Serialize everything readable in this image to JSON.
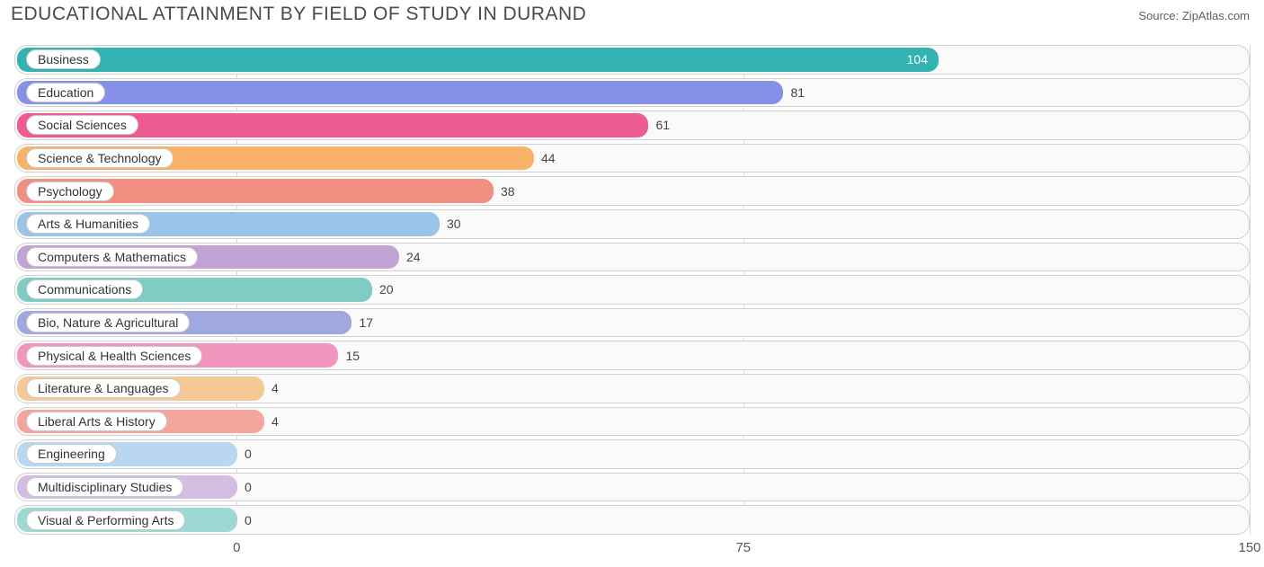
{
  "title": "EDUCATIONAL ATTAINMENT BY FIELD OF STUDY IN DURAND",
  "source_label": "Source: ZipAtlas.com",
  "chart": {
    "type": "bar",
    "orientation": "horizontal",
    "xlim": [
      0,
      150
    ],
    "xticks": [
      0,
      75,
      150
    ],
    "background_color": "#ffffff",
    "row_bg": "#fafafa",
    "row_border": "#d0d0d0",
    "grid_color": "#d8d8d8",
    "label_origin_pct": 18.0,
    "title_fontsize": 21,
    "label_fontsize": 14,
    "tick_fontsize": 15,
    "value_inside_color": "#ffffff",
    "value_outside_color": "#444444",
    "categories": [
      {
        "label": "Business",
        "value": 104,
        "color": "#33b2b2",
        "value_inside": true
      },
      {
        "label": "Education",
        "value": 81,
        "color": "#8690e6",
        "value_inside": false
      },
      {
        "label": "Social Sciences",
        "value": 61,
        "color": "#ee5a92",
        "value_inside": false
      },
      {
        "label": "Science & Technology",
        "value": 44,
        "color": "#f7b268",
        "value_inside": false
      },
      {
        "label": "Psychology",
        "value": 38,
        "color": "#f28f83",
        "value_inside": false
      },
      {
        "label": "Arts & Humanities",
        "value": 30,
        "color": "#9ac4ea",
        "value_inside": false
      },
      {
        "label": "Computers & Mathematics",
        "value": 24,
        "color": "#c2a3d6",
        "value_inside": false
      },
      {
        "label": "Communications",
        "value": 20,
        "color": "#80cbc4",
        "value_inside": false
      },
      {
        "label": "Bio, Nature & Agricultural",
        "value": 17,
        "color": "#a0a8e0",
        "value_inside": false
      },
      {
        "label": "Physical & Health Sciences",
        "value": 15,
        "color": "#f195bd",
        "value_inside": false
      },
      {
        "label": "Literature & Languages",
        "value": 4,
        "color": "#f6c896",
        "value_inside": false
      },
      {
        "label": "Liberal Arts & History",
        "value": 4,
        "color": "#f4a59c",
        "value_inside": false
      },
      {
        "label": "Engineering",
        "value": 0,
        "color": "#b9d7f0",
        "value_inside": false
      },
      {
        "label": "Multidisciplinary Studies",
        "value": 0,
        "color": "#d4bde3",
        "value_inside": false
      },
      {
        "label": "Visual & Performing Arts",
        "value": 0,
        "color": "#9ed8d2",
        "value_inside": false
      }
    ]
  }
}
